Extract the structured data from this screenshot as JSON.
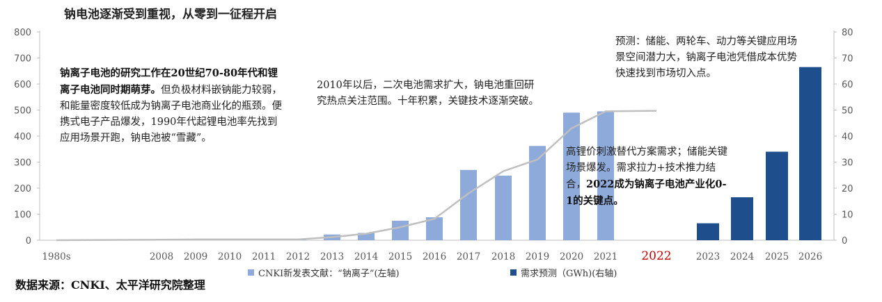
{
  "title": "钠电池逐渐受到重视，从零到一征程开启",
  "source": "数据来源：CNKI、太平洋研究院整理",
  "colors": {
    "papers": "#8eaadb",
    "demand": "#1f4e8c",
    "line": "#bfbfbf",
    "highlight_year": "#c00000"
  },
  "annotations": {
    "a1_bold": "钠离子电池的研究工作在20世纪70-80年代和锂离子电池同时期萌芽。",
    "a1_rest": "但负极材料嵌钠能力较弱，和能量密度较低成为钠离子电池商业化的瓶颈。便携式电子产品爆发，1990年代起锂电池率先找到应用场景开跑，钠电池被“雪藏”。",
    "a2": "2010年以后，二次电池需求扩大，钠电池重回研究热点关注范围。十年积累，关键技术逐渐突破。",
    "a3": "预测：储能、两轮车、动力等关键应用场景空间潜力大，钠离子电池凭借成本优势快速找到市场切入点。",
    "a4_rest": "高锂价刺激替代方案需求；储能关键场景爆发。需求拉力+技术推力结合，",
    "a4_bold": "2022成为钠离子电池产业化0-1的关键点。"
  },
  "chart_data": {
    "type": "bar",
    "categories": [
      "1980s",
      "2008",
      "2009",
      "2010",
      "2011",
      "2012",
      "2013",
      "2014",
      "2015",
      "2016",
      "2017",
      "2018",
      "2019",
      "2020",
      "2021",
      "2022",
      "2023",
      "2024",
      "2025",
      "2026"
    ],
    "highlight_category": "2022",
    "y_left": {
      "lim": [
        0,
        800
      ],
      "ticks": [
        0,
        100,
        200,
        300,
        400,
        500,
        600,
        700,
        800
      ]
    },
    "y_right": {
      "lim": [
        0,
        80
      ],
      "ticks": [
        0,
        10,
        20,
        30,
        40,
        50,
        60,
        70,
        80
      ]
    },
    "series": [
      {
        "name": "CNKI新发表文献：“钠离子”(左轴)",
        "axis": "left",
        "kind": "bar",
        "values": [
          0,
          3,
          4,
          2,
          2,
          2,
          22,
          28,
          75,
          88,
          270,
          248,
          362,
          490,
          495,
          null,
          null,
          null,
          null,
          null
        ]
      },
      {
        "name": "需求预测（GWh)(右轴)",
        "axis": "right",
        "kind": "bar",
        "values": [
          null,
          null,
          null,
          null,
          null,
          null,
          null,
          null,
          null,
          null,
          null,
          null,
          null,
          null,
          null,
          null,
          6.5,
          16.5,
          34,
          66.5
        ]
      },
      {
        "name": "",
        "axis": "left",
        "kind": "line",
        "values": [
          0,
          2,
          3,
          3,
          3,
          3,
          12,
          25,
          50,
          82,
          180,
          265,
          310,
          430,
          495,
          497,
          null,
          null,
          null,
          null
        ]
      }
    ]
  }
}
